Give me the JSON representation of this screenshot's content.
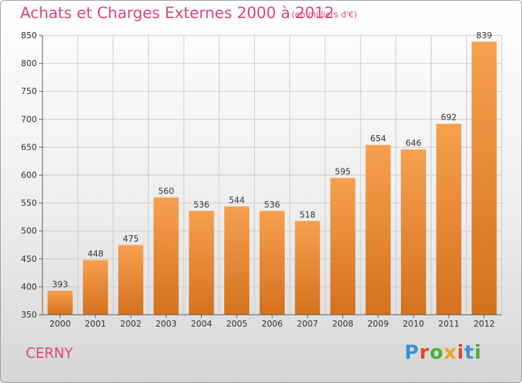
{
  "header": {
    "title": "Achats et Charges Externes 2000 à 2012",
    "unit": "(en milliers d'€)"
  },
  "footer": {
    "city": "CERNY",
    "logo": "Proxiti"
  },
  "colors": {
    "title": "#e0457a",
    "bar_top": "#f7a04e",
    "bar_bottom": "#d4711e",
    "logo_letters": [
      "#3a8fd8",
      "#e04a2a",
      "#4fae3a",
      "#f2a21a",
      "#e04a2a",
      "#3a8fd8",
      "#4fae3a"
    ]
  },
  "chart_data": {
    "type": "bar",
    "title": "Achats et Charges Externes 2000 à 2012",
    "subtitle": "(en milliers d'€)",
    "categories": [
      "2000",
      "2001",
      "2002",
      "2003",
      "2004",
      "2005",
      "2006",
      "2007",
      "2008",
      "2009",
      "2010",
      "2011",
      "2012"
    ],
    "values": [
      393,
      448,
      475,
      560,
      536,
      544,
      536,
      518,
      595,
      654,
      646,
      692,
      839
    ],
    "ylim": [
      350,
      850
    ],
    "yticks": [
      350,
      400,
      450,
      500,
      550,
      600,
      650,
      700,
      750,
      800,
      850
    ],
    "grid": true,
    "data_labels": true
  }
}
